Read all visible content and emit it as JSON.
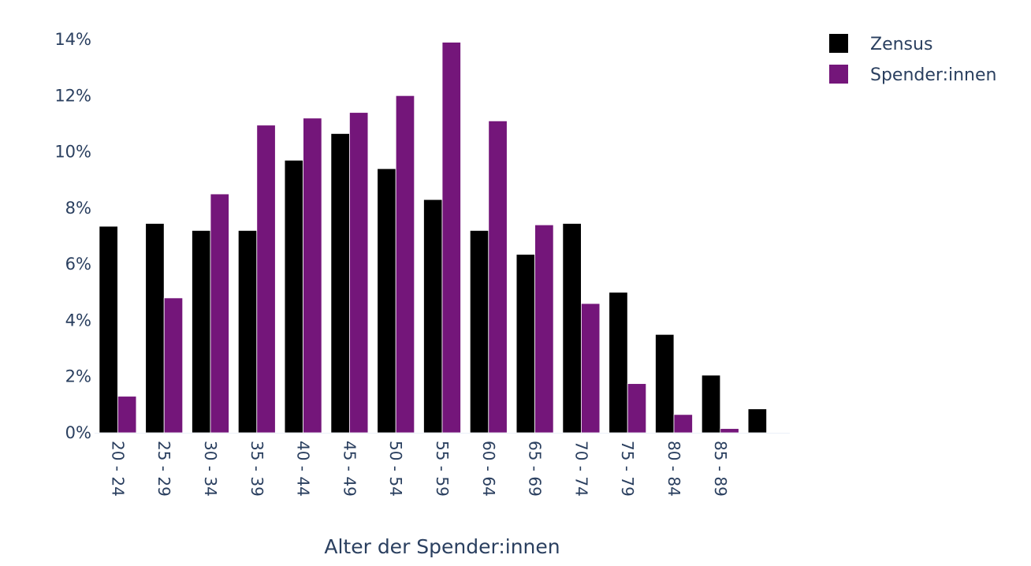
{
  "chart_data": {
    "type": "bar",
    "title": "",
    "xlabel": "Alter der Spender:innen",
    "ylabel": "",
    "ylim": [
      0,
      14
    ],
    "y_tick_format": "{v}%",
    "y_ticks": [
      0,
      2,
      4,
      6,
      8,
      10,
      12,
      14
    ],
    "categories": [
      "20 - 24",
      "25 - 29",
      "30 - 34",
      "35 - 39",
      "40 - 44",
      "45 - 49",
      "50 - 54",
      "55 - 59",
      "60 - 64",
      "65 - 69",
      "70 - 74",
      "75 - 79",
      "80 - 84",
      "85 - 89",
      ""
    ],
    "series": [
      {
        "name": "Zensus",
        "color": "#000000",
        "values": [
          7.35,
          7.45,
          7.2,
          7.2,
          9.7,
          10.65,
          9.4,
          8.3,
          7.2,
          6.35,
          7.45,
          5.0,
          3.5,
          2.05,
          0.85
        ]
      },
      {
        "name": "Spender:innen",
        "color": "#74167a",
        "values": [
          1.3,
          4.8,
          8.5,
          10.95,
          11.2,
          11.4,
          12.0,
          13.9,
          11.1,
          7.4,
          4.6,
          1.75,
          0.65,
          0.15,
          0
        ]
      }
    ],
    "legend_position": "top-right",
    "grid": false
  }
}
